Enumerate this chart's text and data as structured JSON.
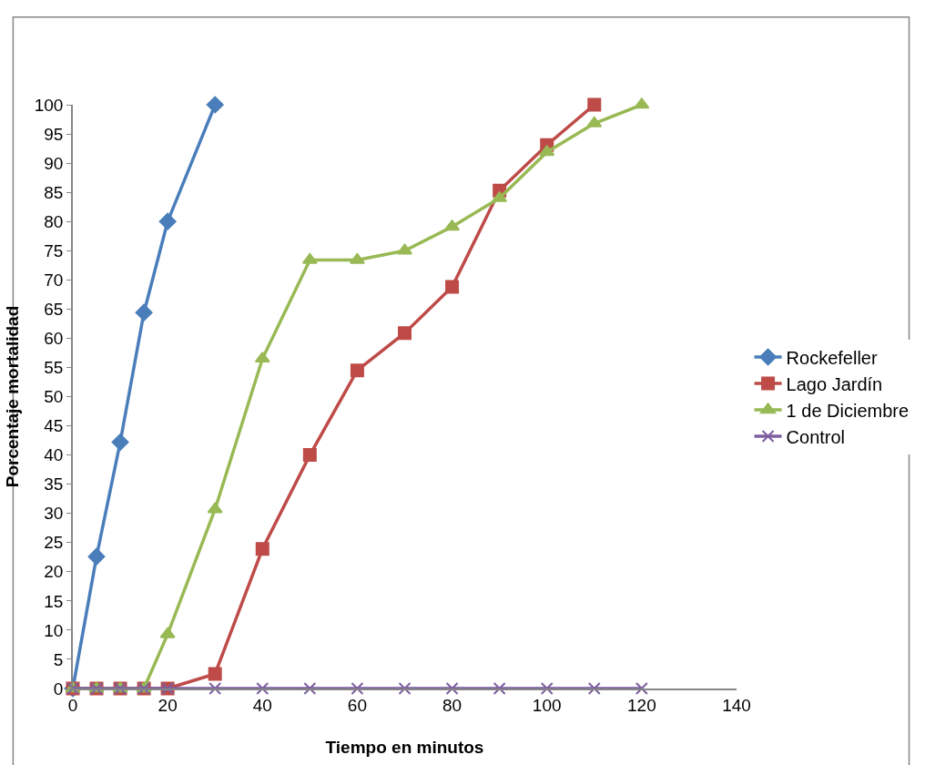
{
  "chart_data": {
    "type": "line",
    "xlabel": "Tiempo en minutos",
    "ylabel": "Porcentaje mortalidad",
    "xlim": [
      0,
      140
    ],
    "xticks": [
      0,
      20,
      40,
      60,
      80,
      100,
      120,
      140
    ],
    "ylim": [
      0,
      100
    ],
    "yticks": [
      0,
      5,
      10,
      15,
      20,
      25,
      30,
      35,
      40,
      45,
      50,
      55,
      60,
      65,
      70,
      75,
      80,
      85,
      90,
      95,
      100
    ],
    "legend": "right",
    "line_style": "solid",
    "series": [
      {
        "name": "Rockefeller",
        "color": "#4a7ebb",
        "marker": "diamond",
        "x": [
          0,
          5,
          10,
          15,
          20,
          30
        ],
        "values": [
          0,
          22.6,
          42.2,
          64.4,
          80,
          100
        ]
      },
      {
        "name": "Lago Jardín",
        "color": "#be4b48",
        "marker": "square",
        "x": [
          0,
          5,
          10,
          15,
          20,
          30,
          40,
          50,
          60,
          70,
          80,
          90,
          100,
          110
        ],
        "values": [
          0,
          0,
          0,
          0,
          0,
          2.5,
          23.9,
          40,
          54.5,
          60.9,
          68.8,
          85.3,
          93.1,
          100
        ]
      },
      {
        "name": "1 de Diciembre",
        "color": "#98b954",
        "marker": "triangle",
        "x": [
          0,
          5,
          10,
          15,
          20,
          30,
          40,
          50,
          60,
          70,
          80,
          90,
          100,
          110,
          120
        ],
        "values": [
          0,
          0,
          0,
          0,
          9.3,
          30.7,
          56.5,
          73.4,
          73.4,
          75,
          79.1,
          84,
          91.9,
          96.8,
          100
        ]
      },
      {
        "name": "Control",
        "color": "#7d60a0",
        "marker": "cross",
        "x": [
          0,
          5,
          10,
          15,
          20,
          30,
          40,
          50,
          60,
          70,
          80,
          90,
          100,
          110,
          120
        ],
        "values": [
          0,
          0,
          0,
          0,
          0,
          0,
          0,
          0,
          0,
          0,
          0,
          0,
          0,
          0,
          0
        ]
      }
    ]
  }
}
